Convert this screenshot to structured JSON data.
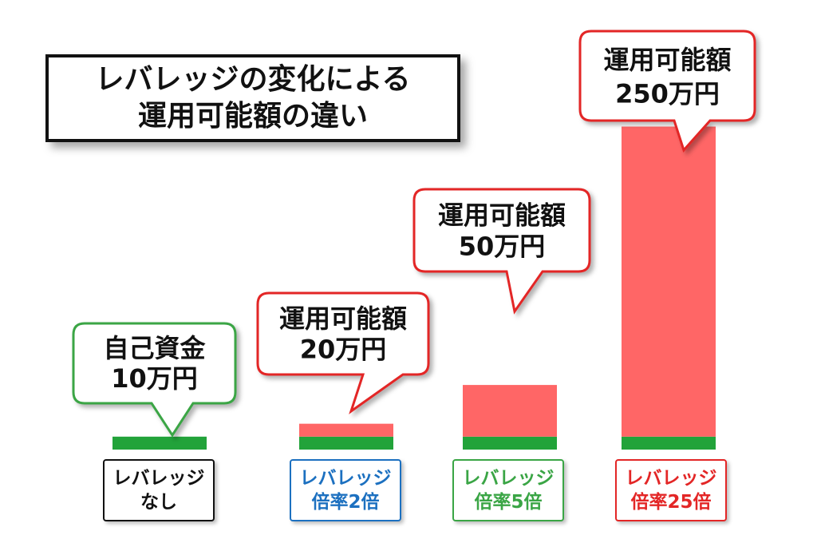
{
  "title": {
    "line1": "レバレッジの変化による",
    "line2": "運用可能額の違い"
  },
  "colors": {
    "own": "#22a33a",
    "leveraged": "#ff6666",
    "green_border": "#3aa545",
    "red_border": "#e32626",
    "blue_border": "#1c70c0",
    "black_border": "#111111"
  },
  "chart_data": {
    "type": "bar",
    "categories": [
      {
        "line1": "レバレッジ",
        "line2": "なし",
        "color": "#111111"
      },
      {
        "line1": "レバレッジ",
        "line2": "倍率2倍",
        "color": "#1c70c0"
      },
      {
        "line1": "レバレッジ",
        "line2": "倍率5倍",
        "color": "#3aa545"
      },
      {
        "line1": "レバレッジ",
        "line2": "倍率25倍",
        "color": "#e32626"
      }
    ],
    "series": [
      {
        "values": [
          10,
          10,
          10,
          10
        ],
        "color": "#22a33a"
      },
      {
        "values": [
          0,
          10,
          40,
          240
        ],
        "color": "#ff6666"
      }
    ],
    "callouts": [
      {
        "line1": "自己資金",
        "line2": "10万円",
        "border": "#3aa545"
      },
      {
        "line1": "運用可能額",
        "line2": "20万円",
        "border": "#e32626"
      },
      {
        "line1": "運用可能額",
        "line2": "50万円",
        "border": "#e32626"
      },
      {
        "line1": "運用可能額",
        "line2": "250万円",
        "border": "#e32626"
      }
    ],
    "unit": "万円"
  }
}
